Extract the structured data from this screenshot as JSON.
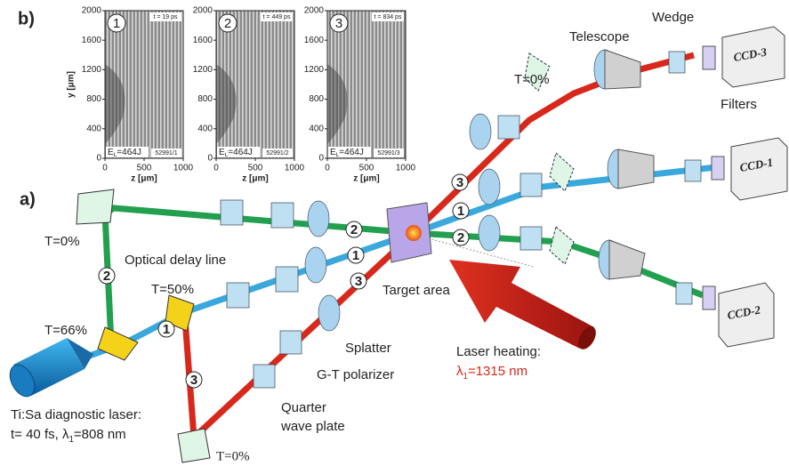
{
  "panel_b": {
    "label": "b)",
    "y_axis_label": "y [μm]",
    "insets": [
      {
        "number": "1",
        "time": "t = 19 ps",
        "energy": {
          "symbol": "E",
          "subscript": "L",
          "value": "=464J"
        },
        "shot": "52991/1",
        "yticks": [
          "2000",
          "1600",
          "1200",
          "800",
          "400",
          "0"
        ],
        "xticks": [
          "0",
          "500",
          "1000"
        ],
        "x_axis_label": "z [μm]"
      },
      {
        "number": "2",
        "time": "t = 449 ps",
        "energy": {
          "symbol": "E",
          "subscript": "L",
          "value": "=464J"
        },
        "shot": "52991/2",
        "yticks": [
          "2000",
          "1600",
          "1200",
          "800",
          "400",
          "0"
        ],
        "xticks": [
          "0",
          "500",
          "1000"
        ],
        "x_axis_label": "z [μm]"
      },
      {
        "number": "3",
        "time": "t = 834 ps",
        "energy": {
          "symbol": "E",
          "subscript": "L",
          "value": "=464J"
        },
        "shot": "52991/3",
        "yticks": [
          "2000",
          "1600",
          "1200",
          "800",
          "400",
          "0"
        ],
        "xticks": [
          "0",
          "500",
          "1000"
        ],
        "x_axis_label": "z [μm]"
      }
    ]
  },
  "panel_a": {
    "label": "a)",
    "mirror_top_left": "T=0%",
    "splitter_66": "T=66%",
    "splitter_50": "T=50%",
    "mirror_bottom": "T=0%",
    "wedge_ccd3": "T=0%",
    "optical_delay_line": "Optical delay line",
    "target_area": "Target area",
    "splatter": "Splatter",
    "polarizer": "G-T polarizer",
    "wave_plate": [
      "Quarter",
      "wave plate"
    ],
    "heating": {
      "title": "Laser heating:",
      "symbol": "λ",
      "subscript": "1",
      "value": "=1315 nm"
    },
    "diagnostic": {
      "title": "Ti:Sa diagnostic laser:",
      "prefix": "t= 40 fs, ",
      "symbol": "λ",
      "subscript": "1",
      "value": "=808 nm"
    },
    "telescope": "Telescope",
    "wedge": "Wedge",
    "filters": "Filters",
    "cameras": [
      "CCD-3",
      "CCD-1",
      "CCD-2"
    ],
    "beam_markers": [
      "1",
      "1",
      "1",
      "2",
      "2",
      "2",
      "3",
      "3",
      "3"
    ]
  }
}
